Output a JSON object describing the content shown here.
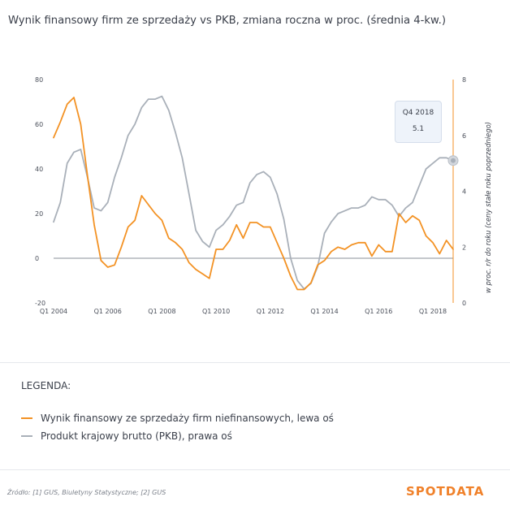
{
  "chart_data": {
    "type": "line",
    "title": "Wynik finansowy firm ze sprzedaży vs PKB, zmiana roczna w proc. (średnia 4-kw.)",
    "y_right_label": "w proc. r/r do roku (ceny stałe roku poprzedniego)",
    "y_left_ticks": [
      80,
      60,
      40,
      20,
      0,
      -20
    ],
    "y_right_ticks": [
      8,
      6,
      4,
      2,
      0
    ],
    "y_left_range": [
      -20,
      80
    ],
    "y_right_range": [
      0,
      8
    ],
    "x_ticks": [
      "Q1 2004",
      "Q1 2006",
      "Q1 2008",
      "Q1 2010",
      "Q1 2012",
      "Q1 2014",
      "Q1 2016",
      "Q1 2018"
    ],
    "x_range": [
      2004.0,
      2018.75
    ],
    "grid": false,
    "zero_line": true,
    "series": [
      {
        "name": "Wynik finansowy ze sprzedaży firm niefinansowych, lewa oś",
        "axis": "left",
        "color": "#f39224",
        "x": [
          2004.0,
          2004.25,
          2004.5,
          2004.75,
          2005.0,
          2005.25,
          2005.5,
          2005.75,
          2006.0,
          2006.25,
          2006.5,
          2006.75,
          2007.0,
          2007.25,
          2007.5,
          2007.75,
          2008.0,
          2008.25,
          2008.5,
          2008.75,
          2009.0,
          2009.25,
          2009.5,
          2009.75,
          2010.0,
          2010.25,
          2010.5,
          2010.75,
          2011.0,
          2011.25,
          2011.5,
          2011.75,
          2012.0,
          2012.25,
          2012.5,
          2012.75,
          2013.0,
          2013.25,
          2013.5,
          2013.75,
          2014.0,
          2014.25,
          2014.5,
          2014.75,
          2015.0,
          2015.25,
          2015.5,
          2015.75,
          2016.0,
          2016.25,
          2016.5,
          2016.75,
          2017.0,
          2017.25,
          2017.5,
          2017.75,
          2018.0,
          2018.25,
          2018.5,
          2018.75
        ],
        "values": [
          54,
          61,
          69,
          72,
          60,
          37,
          15,
          -1,
          -4,
          -3,
          5,
          14,
          17,
          28,
          24,
          20,
          17,
          9,
          7,
          4,
          -2,
          -5,
          -7,
          -9,
          4,
          4,
          8,
          15,
          9,
          16,
          16,
          14,
          14,
          7,
          0,
          -8,
          -14,
          -14,
          -11,
          -3,
          -1,
          3,
          5,
          4,
          6,
          7,
          7,
          1,
          6,
          3,
          3,
          20,
          16,
          19,
          17,
          10,
          7,
          2,
          8,
          4
        ],
        "visible_end_label": ""
      },
      {
        "name": "Produkt krajowy brutto (PKB), prawa oś",
        "axis": "right",
        "color": "#a9b0b9",
        "x": [
          2004.0,
          2004.25,
          2004.5,
          2004.75,
          2005.0,
          2005.25,
          2005.5,
          2005.75,
          2006.0,
          2006.25,
          2006.5,
          2006.75,
          2007.0,
          2007.25,
          2007.5,
          2007.75,
          2008.0,
          2008.25,
          2008.5,
          2008.75,
          2009.0,
          2009.25,
          2009.5,
          2009.75,
          2010.0,
          2010.25,
          2010.5,
          2010.75,
          2011.0,
          2011.25,
          2011.5,
          2011.75,
          2012.0,
          2012.25,
          2012.5,
          2012.75,
          2013.0,
          2013.25,
          2013.5,
          2013.75,
          2014.0,
          2014.25,
          2014.5,
          2014.75,
          2015.0,
          2015.25,
          2015.5,
          2015.75,
          2016.0,
          2016.25,
          2016.5,
          2016.75,
          2017.0,
          2017.25,
          2017.5,
          2017.75,
          2018.0,
          2018.25,
          2018.5,
          2018.75
        ],
        "values": [
          2.9,
          3.6,
          5.0,
          5.4,
          5.5,
          4.5,
          3.4,
          3.3,
          3.6,
          4.5,
          5.2,
          6.0,
          6.4,
          7.0,
          7.3,
          7.3,
          7.4,
          6.9,
          6.1,
          5.2,
          3.9,
          2.6,
          2.2,
          2.0,
          2.6,
          2.8,
          3.1,
          3.5,
          3.6,
          4.3,
          4.6,
          4.7,
          4.5,
          3.9,
          3.0,
          1.6,
          0.8,
          0.5,
          0.7,
          1.3,
          2.5,
          2.9,
          3.2,
          3.3,
          3.4,
          3.4,
          3.5,
          3.8,
          3.7,
          3.7,
          3.5,
          3.1,
          3.4,
          3.6,
          4.2,
          4.8,
          5.0,
          5.2,
          5.2,
          5.1
        ]
      }
    ],
    "tooltip": {
      "label": "Q4 2018",
      "value": "5.1"
    }
  },
  "legend": {
    "heading": "LEGENDA:",
    "items": [
      {
        "label": "Wynik finansowy ze sprzedaży firm niefinansowych, lewa oś",
        "color": "#f39224"
      },
      {
        "label": "Produkt krajowy brutto (PKB), prawa oś",
        "color": "#a9b0b9"
      }
    ]
  },
  "source": "Źródło: [1] GUS, Biuletyny Statystyczne; [2] GUS",
  "logo": "SPOTDATA",
  "colors": {
    "accent": "#f39224",
    "gray": "#a9b0b9"
  }
}
